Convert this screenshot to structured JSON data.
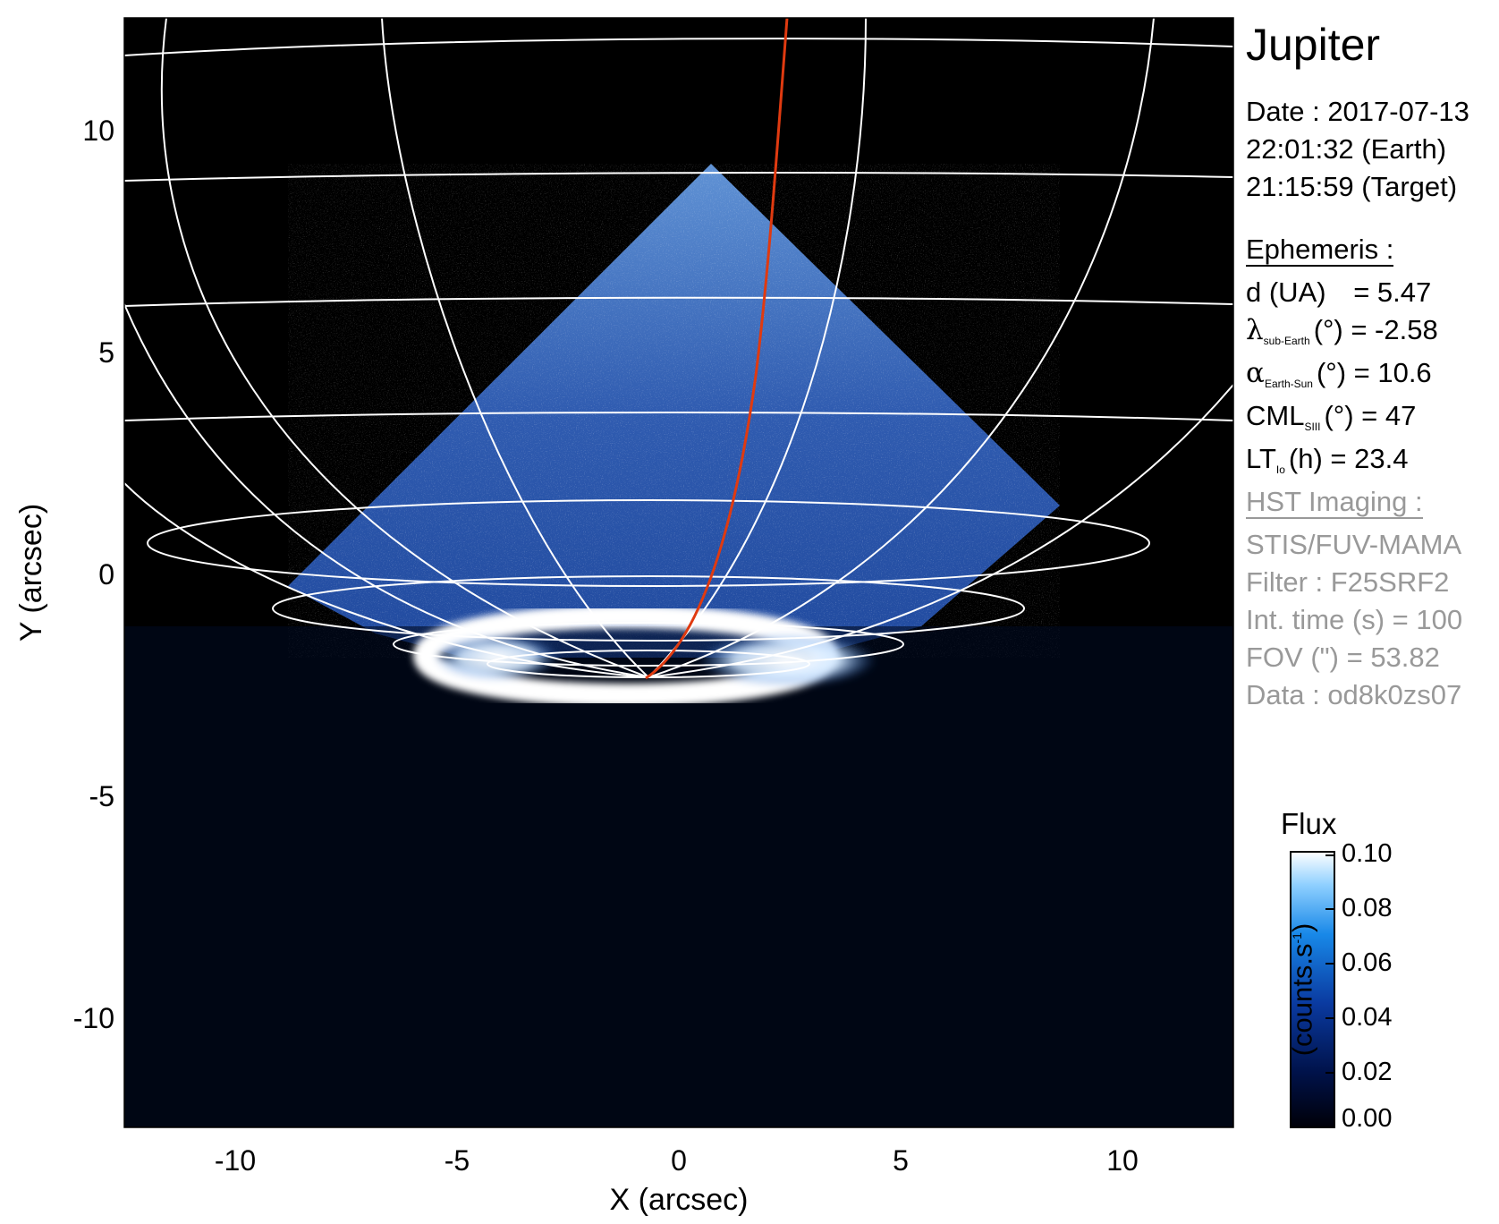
{
  "figure": {
    "xlabel": "X (arcsec)",
    "ylabel": "Y (arcsec)",
    "x_ticks": [
      "-10",
      "-5",
      "0",
      "5",
      "10"
    ],
    "y_ticks": [
      "10",
      "5",
      "0",
      "-5",
      "-10"
    ],
    "x_range": [
      -12.5,
      12.5
    ],
    "y_range": [
      -12.5,
      12.5
    ]
  },
  "info": {
    "target": "Jupiter",
    "date_line": "Date : 2017-07-13",
    "earth_time": "22:01:32 (Earth)",
    "target_time": "21:15:59 (Target)",
    "ephemeris_header": "Ephemeris :",
    "d_label": "d (UA)",
    "d_value": "= 5.47",
    "lambda_sym": "λ",
    "lambda_sub": "sub-Earth",
    "lambda_value": "(°) = -2.58",
    "alpha_sym": "α",
    "alpha_sub": "Earth-Sun",
    "alpha_value": "(°) = 10.6",
    "cml_sym": "CML",
    "cml_sub": "SIII",
    "cml_value": "(°) = 47",
    "lt_sym": "LT",
    "lt_sub": "Io",
    "lt_value": "(h) = 23.4",
    "hst_header": "HST Imaging :",
    "instrument": "STIS/FUV-MAMA",
    "filter": "Filter : F25SRF2",
    "int_time": "Int. time (s) = 100",
    "fov": "FOV (\") = 53.82",
    "dataset": "Data : od8k0zs07"
  },
  "colorbar": {
    "title": "Flux",
    "unit_main": "(counts.s",
    "unit_sup": "-1",
    "unit_end": ")",
    "ticks": [
      "0.10",
      "0.08",
      "0.06",
      "0.04",
      "0.02",
      "0.00"
    ],
    "range": [
      0.0,
      0.1
    ]
  },
  "colors": {
    "background": "#000000",
    "grid": "#ffffff",
    "trace": "#e03a10",
    "flux_low": "#000010",
    "flux_mid": "#1f6bd6",
    "flux_high": "#ffffff",
    "hst_text": "#999999"
  }
}
